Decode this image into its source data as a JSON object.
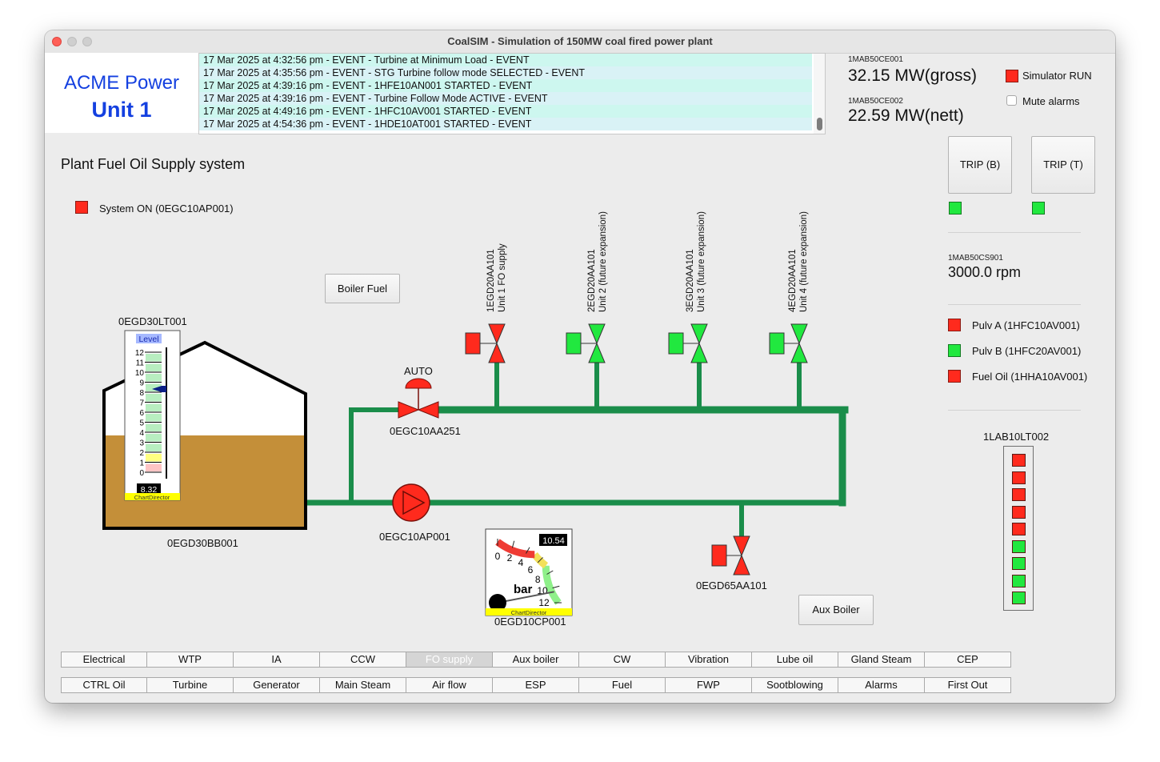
{
  "window": {
    "title": "CoalSIM - Simulation of 150MW coal fired power plant"
  },
  "logo": {
    "line1": "ACME Power",
    "line2": "Unit 1"
  },
  "events": [
    "17 Mar 2025 at 4:32:56 pm - EVENT - Turbine at Minimum Load - EVENT",
    "17 Mar 2025 at 4:35:56 pm - EVENT - STG Turbine follow mode SELECTED - EVENT",
    "17 Mar 2025 at 4:39:16 pm - EVENT - 1HFE10AN001 STARTED - EVENT",
    "17 Mar 2025 at 4:39:16 pm - EVENT - Turbine Follow Mode ACTIVE - EVENT",
    "17 Mar 2025 at 4:49:16 pm - EVENT - 1HFC10AV001 STARTED - EVENT",
    "17 Mar 2025 at 4:54:36 pm - EVENT - 1HDE10AT001 STARTED - EVENT"
  ],
  "readouts": {
    "gross_tag": "1MAB50CE001",
    "gross_value": "32.15 MW(gross)",
    "nett_tag": "1MAB50CE002",
    "nett_value": "22.59 MW(nett)",
    "speed_tag": "1MAB50CS901",
    "speed_value": "3000.0 rpm"
  },
  "controls": {
    "simulator_run": "Simulator RUN",
    "mute_alarms": "Mute alarms",
    "trip_b": "TRIP (B)",
    "trip_t": "TRIP (T)"
  },
  "status_list": [
    {
      "label": "Pulv A (1HFC10AV001)",
      "color": "#ff2a1d"
    },
    {
      "label": "Pulv B (1HFC20AV001)",
      "color": "#21e83f"
    },
    {
      "label": "Fuel Oil (1HHA10AV001)",
      "color": "#ff2a1d"
    }
  ],
  "side_level": {
    "tag": "1LAB10LT002",
    "cells": [
      "#ff2a1d",
      "#ff2a1d",
      "#ff2a1d",
      "#ff2a1d",
      "#ff2a1d",
      "#21e83f",
      "#21e83f",
      "#21e83f",
      "#21e83f"
    ]
  },
  "diagram": {
    "title": "Plant Fuel Oil Supply system",
    "system_on": "System ON (0EGC10AP001)",
    "boiler_fuel": "Boiler Fuel",
    "aux_boiler": "Aux Boiler",
    "tank_tag": "0EGD30BB001",
    "level_tag": "0EGD30LT001",
    "level_title": "Level",
    "level_value": "8.32",
    "level_ticks": [
      "12",
      "11",
      "10",
      "9",
      "8",
      "7",
      "6",
      "5",
      "4",
      "3",
      "2",
      "1",
      "0"
    ],
    "chartdirector": "ChartDirector",
    "pump_tag": "0EGC10AP001",
    "control_valve_tag": "0EGC10AA251",
    "control_valve_mode": "AUTO",
    "aux_valve_tag": "0EGD65AA101",
    "pressure_tag": "0EGD10CP001",
    "pressure_value": "10.54",
    "pressure_unit": "bar",
    "pressure_ticks": [
      "12",
      "10",
      "8",
      "6",
      "4",
      "2",
      "0"
    ],
    "unit_valves": [
      {
        "tag": "1EGD20AA101",
        "desc": "Unit 1 FO supply",
        "state": "red"
      },
      {
        "tag": "2EGD20AA101",
        "desc": "Unit 2 (future expansion)",
        "state": "green"
      },
      {
        "tag": "3EGD20AA101",
        "desc": "Unit 3 (future expansion)",
        "state": "green"
      },
      {
        "tag": "4EGD20AA101",
        "desc": "Unit 4 (future expansion)",
        "state": "green"
      }
    ]
  },
  "nav_row1": [
    "Electrical",
    "WTP",
    "IA",
    "CCW",
    "FO supply",
    "Aux boiler",
    "CW",
    "Vibration",
    "Lube oil",
    "Gland Steam",
    "CEP"
  ],
  "nav_row2": [
    "CTRL Oil",
    "Turbine",
    "Generator",
    "Main Steam",
    "Air flow",
    "ESP",
    "Fuel",
    "FWP",
    "Sootblowing",
    "Alarms",
    "First Out"
  ],
  "nav_active": "FO supply",
  "colors": {
    "pipe": "#1a8d4a",
    "alarm_red": "#ff2a1d",
    "ok_green": "#21e83f",
    "logo_blue": "#1440e0",
    "oil": "#c48f39"
  }
}
